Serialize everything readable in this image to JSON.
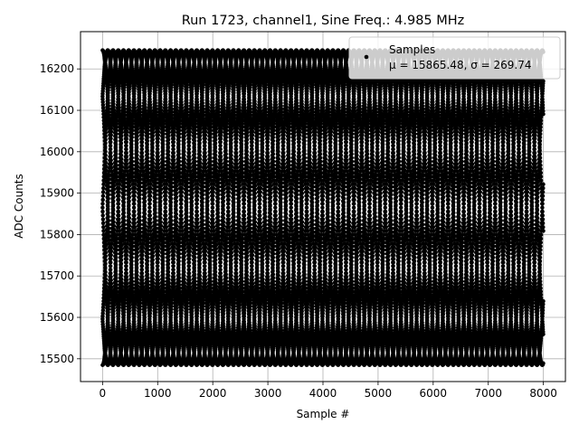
{
  "chart_data": {
    "type": "scatter",
    "title": "Run 1723, channel1, Sine Freq.: 4.985 MHz",
    "xlabel": "Sample #",
    "ylabel": "ADC Counts",
    "xlim": [
      -400,
      8400
    ],
    "ylim": [
      15445,
      16290
    ],
    "xticks": [
      0,
      1000,
      2000,
      3000,
      4000,
      5000,
      6000,
      7000,
      8000
    ],
    "yticks": [
      15500,
      15600,
      15700,
      15800,
      15900,
      16000,
      16100,
      16200
    ],
    "grid": true,
    "legend_position": "top-right",
    "series": [
      {
        "name": "Samples",
        "marker": "dot",
        "color": "#000000",
        "legend_label": "μ = 15865.48, σ = 269.74",
        "mean": 15865.48,
        "std": 269.74,
        "sample_count": 8000,
        "amplitude_approx": 380,
        "envelope_period_samples": 760
      }
    ]
  }
}
